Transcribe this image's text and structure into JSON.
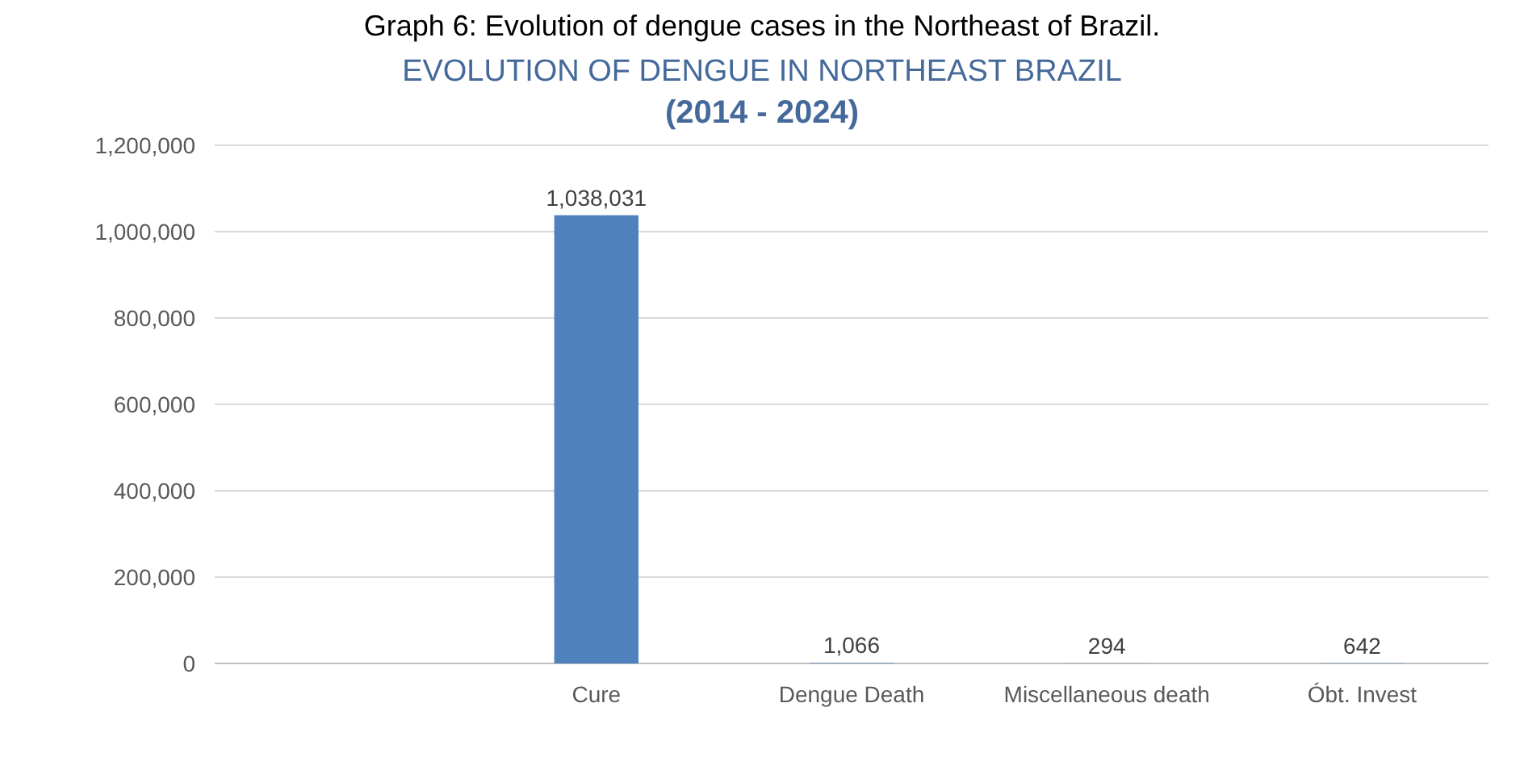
{
  "chart_data": {
    "type": "bar",
    "title": "EVOLUTION OF DENGUE IN NORTHEAST BRAZIL",
    "subtitle": "(2014 - 2024)",
    "annotations": [
      "Graph 6: Evolution of dengue cases in the Northeast of Brazil."
    ],
    "categories": [
      null,
      "Cure",
      "Dengue Death",
      "Miscellaneous death",
      "Óbt. Invest"
    ],
    "values": [
      null,
      1038031,
      1066,
      294,
      642
    ],
    "color": "#4f81bd",
    "ylim": [
      0,
      1200000
    ],
    "yticks": [
      {
        "value": 0,
        "label": "0"
      },
      {
        "value": 200000,
        "label": "200,000"
      },
      {
        "value": 400000,
        "label": "400,000"
      },
      {
        "value": 600000,
        "label": "600,000"
      },
      {
        "value": 800000,
        "label": "800,000"
      },
      {
        "value": 1000000,
        "label": "1,000,000"
      },
      {
        "value": 1200000,
        "label": "1,200,000"
      }
    ],
    "value_labels": [
      null,
      "1,038,031",
      "1,066",
      "294",
      "642"
    ],
    "grid": "y"
  }
}
